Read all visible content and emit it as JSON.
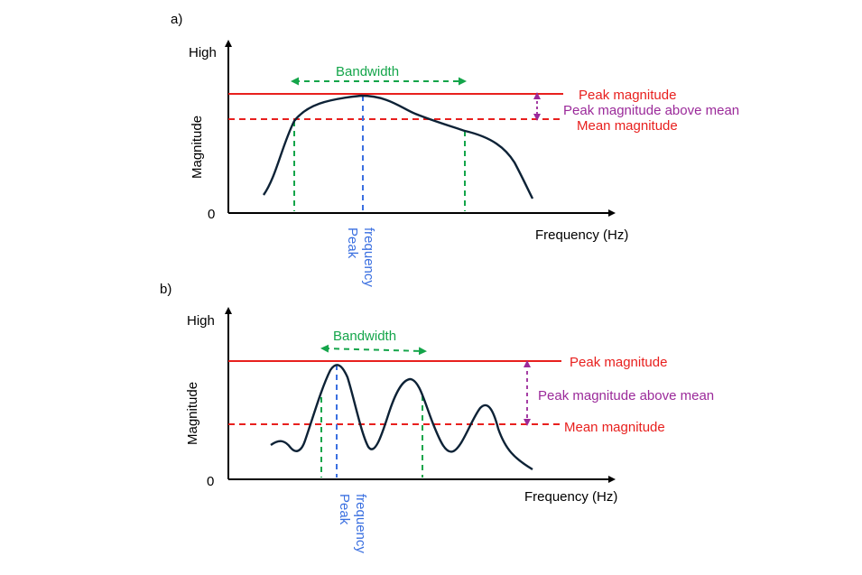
{
  "colors": {
    "axis": "#000000",
    "curve": "#0d2236",
    "red": "#e8201e",
    "green": "#14a54a",
    "blue": "#3a6fe0",
    "purple": "#9b2a9a"
  },
  "panels": [
    {
      "panel_label": "a)",
      "y_high": "High",
      "y_zero": "0",
      "y_title": "Magnitude",
      "x_title": "Frequency (Hz)",
      "bandwidth": "Bandwidth",
      "peak_magnitude": "Peak magnitude",
      "peak_above_mean": "Peak magnitude above mean",
      "mean_magnitude": "Mean magnitude",
      "peak_freq_line1": "Peak",
      "peak_freq_line2": "frequency"
    },
    {
      "panel_label": "b)",
      "y_high": "High",
      "y_zero": "0",
      "y_title": "Magnitude",
      "x_title": "Frequency (Hz)",
      "bandwidth": "Bandwidth",
      "peak_magnitude": "Peak magnitude",
      "peak_above_mean": "Peak magnitude above mean",
      "mean_magnitude": "Mean magnitude",
      "peak_freq_line1": "Peak",
      "peak_freq_line2": "frequency"
    }
  ]
}
